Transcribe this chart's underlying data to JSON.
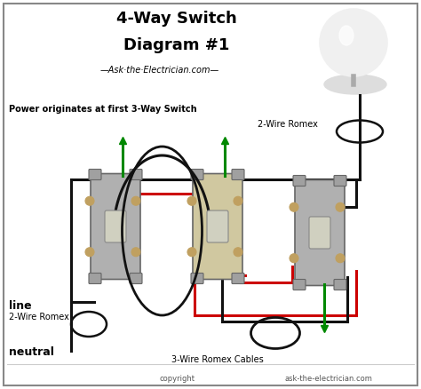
{
  "title_line1": "4-Way Switch",
  "title_line2": "Diagram #1",
  "subtitle": "—Ask·the·Electrician.com—",
  "bg_color": "#ffffff",
  "label_power": "Power originates at first 3-Way Switch",
  "label_2wire_top": "2-Wire Romex",
  "label_2wire_bottom": "2-Wire Romex",
  "label_3wire": "3-Wire Romex Cables",
  "label_line": "line",
  "label_neutral": "neutral",
  "label_copyright": "copyright",
  "label_website": "ask-the-electrician.com",
  "black": "#111111",
  "red": "#cc0000",
  "green": "#008800",
  "border_color": "#aaaaaa"
}
